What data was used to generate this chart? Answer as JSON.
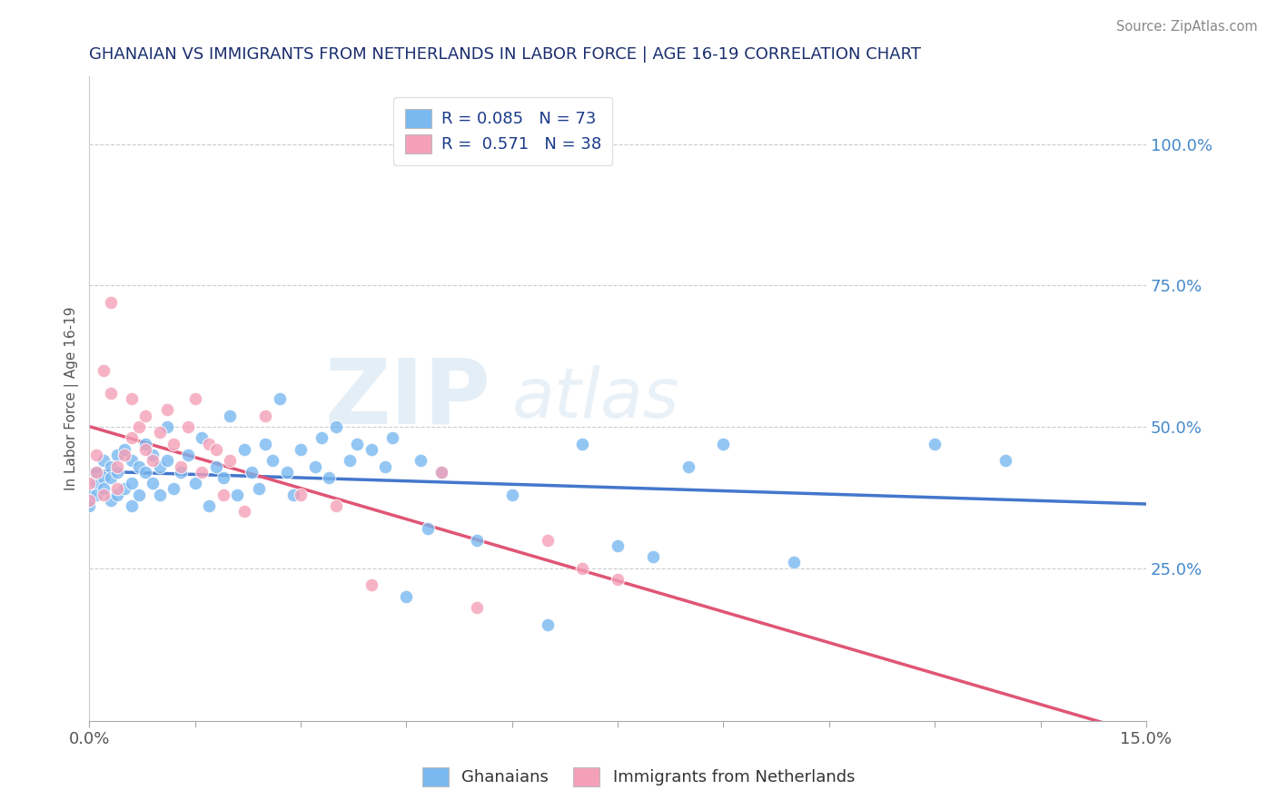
{
  "title": "GHANAIAN VS IMMIGRANTS FROM NETHERLANDS IN LABOR FORCE | AGE 16-19 CORRELATION CHART",
  "source_text": "Source: ZipAtlas.com",
  "ylabel": "In Labor Force | Age 16-19",
  "xlim": [
    0.0,
    0.15
  ],
  "ylim": [
    -0.02,
    1.12
  ],
  "xticks": [
    0.0,
    0.015,
    0.03,
    0.045,
    0.06,
    0.075,
    0.09,
    0.105,
    0.12,
    0.135,
    0.15
  ],
  "xtick_labels": [
    "0.0%",
    "",
    "",
    "",
    "",
    "",
    "",
    "",
    "",
    "",
    "15.0%"
  ],
  "yticks_right": [
    0.25,
    0.5,
    0.75,
    1.0
  ],
  "ytick_labels_right": [
    "25.0%",
    "50.0%",
    "75.0%",
    "100.0%"
  ],
  "blue_color": "#7ab8f0",
  "pink_color": "#f4a0b8",
  "blue_line_color": "#4477cc",
  "pink_line_color": "#e05575",
  "R_blue": 0.085,
  "N_blue": 73,
  "R_pink": 0.571,
  "N_pink": 38,
  "legend_label_blue": "Ghanaians",
  "legend_label_pink": "Immigrants from Netherlands",
  "title_color": "#1a2e6e",
  "source_color": "#888888",
  "label_color": "#1a3a8a",
  "background_color": "#ffffff",
  "grid_color": "#cccccc",
  "blue_scatter_x": [
    0.0,
    0.0,
    0.0,
    0.001,
    0.001,
    0.001,
    0.002,
    0.002,
    0.002,
    0.003,
    0.003,
    0.003,
    0.004,
    0.004,
    0.004,
    0.005,
    0.005,
    0.006,
    0.006,
    0.006,
    0.007,
    0.007,
    0.008,
    0.008,
    0.009,
    0.009,
    0.01,
    0.01,
    0.011,
    0.011,
    0.012,
    0.013,
    0.014,
    0.015,
    0.016,
    0.017,
    0.018,
    0.019,
    0.02,
    0.021,
    0.022,
    0.023,
    0.024,
    0.025,
    0.026,
    0.027,
    0.028,
    0.029,
    0.03,
    0.032,
    0.033,
    0.034,
    0.035,
    0.037,
    0.038,
    0.04,
    0.042,
    0.043,
    0.045,
    0.047,
    0.048,
    0.05,
    0.055,
    0.06,
    0.065,
    0.07,
    0.075,
    0.08,
    0.085,
    0.09,
    0.1,
    0.12,
    0.13
  ],
  "blue_scatter_y": [
    0.38,
    0.37,
    0.36,
    0.4,
    0.42,
    0.38,
    0.41,
    0.44,
    0.39,
    0.43,
    0.37,
    0.41,
    0.45,
    0.38,
    0.42,
    0.39,
    0.46,
    0.4,
    0.44,
    0.36,
    0.43,
    0.38,
    0.42,
    0.47,
    0.45,
    0.4,
    0.38,
    0.43,
    0.5,
    0.44,
    0.39,
    0.42,
    0.45,
    0.4,
    0.48,
    0.36,
    0.43,
    0.41,
    0.52,
    0.38,
    0.46,
    0.42,
    0.39,
    0.47,
    0.44,
    0.55,
    0.42,
    0.38,
    0.46,
    0.43,
    0.48,
    0.41,
    0.5,
    0.44,
    0.47,
    0.46,
    0.43,
    0.48,
    0.2,
    0.44,
    0.32,
    0.42,
    0.3,
    0.38,
    0.15,
    0.47,
    0.29,
    0.27,
    0.43,
    0.47,
    0.26,
    0.47,
    0.44
  ],
  "pink_scatter_x": [
    0.0,
    0.0,
    0.001,
    0.001,
    0.002,
    0.002,
    0.003,
    0.003,
    0.004,
    0.004,
    0.005,
    0.006,
    0.006,
    0.007,
    0.008,
    0.008,
    0.009,
    0.01,
    0.011,
    0.012,
    0.013,
    0.014,
    0.015,
    0.016,
    0.017,
    0.018,
    0.019,
    0.02,
    0.022,
    0.025,
    0.03,
    0.035,
    0.04,
    0.05,
    0.055,
    0.065,
    0.07,
    0.075
  ],
  "pink_scatter_y": [
    0.37,
    0.4,
    0.42,
    0.45,
    0.6,
    0.38,
    0.56,
    0.72,
    0.39,
    0.43,
    0.45,
    0.48,
    0.55,
    0.5,
    0.46,
    0.52,
    0.44,
    0.49,
    0.53,
    0.47,
    0.43,
    0.5,
    0.55,
    0.42,
    0.47,
    0.46,
    0.38,
    0.44,
    0.35,
    0.52,
    0.38,
    0.36,
    0.22,
    0.42,
    0.18,
    0.3,
    0.25,
    0.23
  ]
}
